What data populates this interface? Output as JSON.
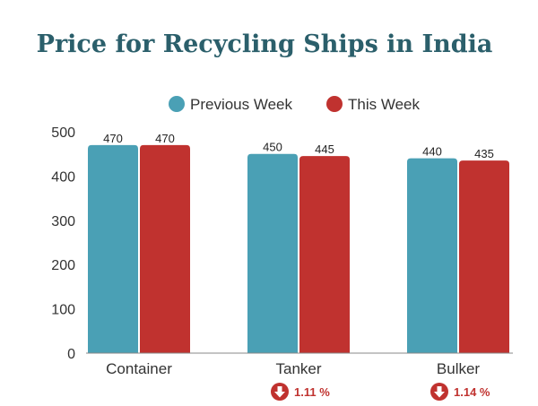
{
  "chart_data": {
    "type": "bar",
    "title": "Price for Recycling Ships in India",
    "categories": [
      "Container",
      "Tanker",
      "Bulker"
    ],
    "series": [
      {
        "name": "Previous Week",
        "values": [
          470,
          450,
          440
        ],
        "color": "#4aa0b5"
      },
      {
        "name": "This Week",
        "values": [
          470,
          445,
          435
        ],
        "color": "#c0322f"
      }
    ],
    "data_labels": [
      [
        "470",
        "470"
      ],
      [
        "450",
        "445"
      ],
      [
        "440",
        "435"
      ]
    ],
    "ylim": [
      0,
      500
    ],
    "yticks": [
      0,
      100,
      200,
      300,
      400,
      500
    ],
    "legend": "top-center",
    "grid": false,
    "changes": [
      {
        "category": "Tanker",
        "text": "1.11 %",
        "direction": "down"
      },
      {
        "category": "Bulker",
        "text": "1.14 %",
        "direction": "down"
      }
    ],
    "change_color": "#c0322f"
  }
}
